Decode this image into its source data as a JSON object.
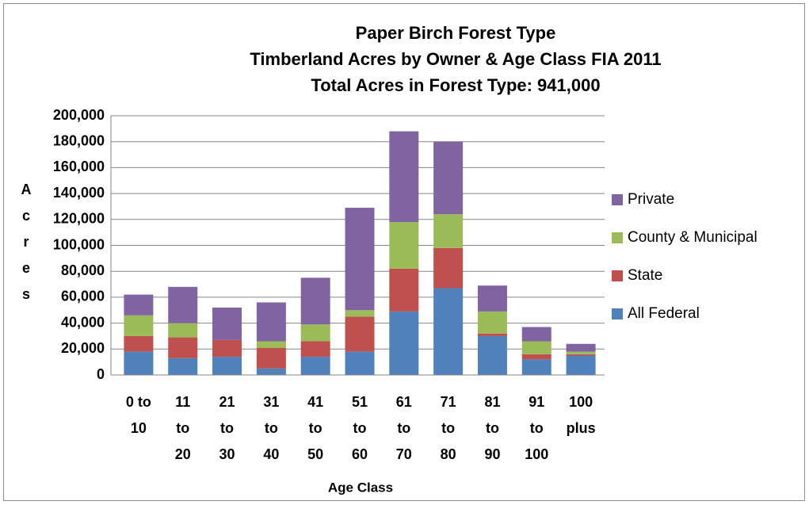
{
  "chart_data": {
    "type": "stacked_bar",
    "title": [
      "Paper Birch Forest Type",
      "Timberland Acres by Owner & Age Class  FIA 2011",
      "Total Acres in Forest Type: 941,000"
    ],
    "x_label": "Age Class",
    "y_label": "Acres",
    "categories": [
      "0 to 10",
      "11 to 20",
      "21 to 30",
      "31 to 40",
      "41 to 50",
      "51 to 60",
      "61 to 70",
      "71 to 80",
      "81 to 90",
      "91 to 100",
      "100 plus"
    ],
    "series": [
      {
        "name": "All Federal",
        "color": "#4f81bd",
        "values": [
          18000,
          13000,
          14000,
          5000,
          14000,
          18000,
          49000,
          67000,
          30000,
          12000,
          15000
        ]
      },
      {
        "name": "State",
        "color": "#c0504d",
        "values": [
          12000,
          16000,
          13000,
          16000,
          12000,
          27000,
          33000,
          31000,
          2000,
          4000,
          1000
        ]
      },
      {
        "name": "County & Municipal",
        "color": "#9bbb59",
        "values": [
          16000,
          11000,
          0,
          5000,
          13000,
          5000,
          36000,
          26000,
          17000,
          10000,
          2000
        ]
      },
      {
        "name": "Private",
        "color": "#8064a2",
        "values": [
          16000,
          28000,
          25000,
          30000,
          36000,
          79000,
          70000,
          56000,
          20000,
          11000,
          6000
        ]
      }
    ],
    "ylim": [
      0,
      200000
    ],
    "yticks": [
      0,
      {
        "value": 20000,
        "label": "20,000"
      },
      {
        "value": 40000,
        "label": "40,000"
      },
      {
        "value": 60000,
        "label": "60,000"
      },
      {
        "value": 80000,
        "label": "80,000"
      },
      {
        "value": 100000,
        "label": "100,000"
      },
      {
        "value": 120000,
        "label": "120,000"
      },
      {
        "value": 140000,
        "label": "140,000"
      },
      {
        "value": 160000,
        "label": "160,000"
      },
      {
        "value": 180000,
        "label": "180,000"
      },
      {
        "value": 200000,
        "label": "200,000"
      }
    ],
    "grid": true,
    "legend": "right"
  }
}
